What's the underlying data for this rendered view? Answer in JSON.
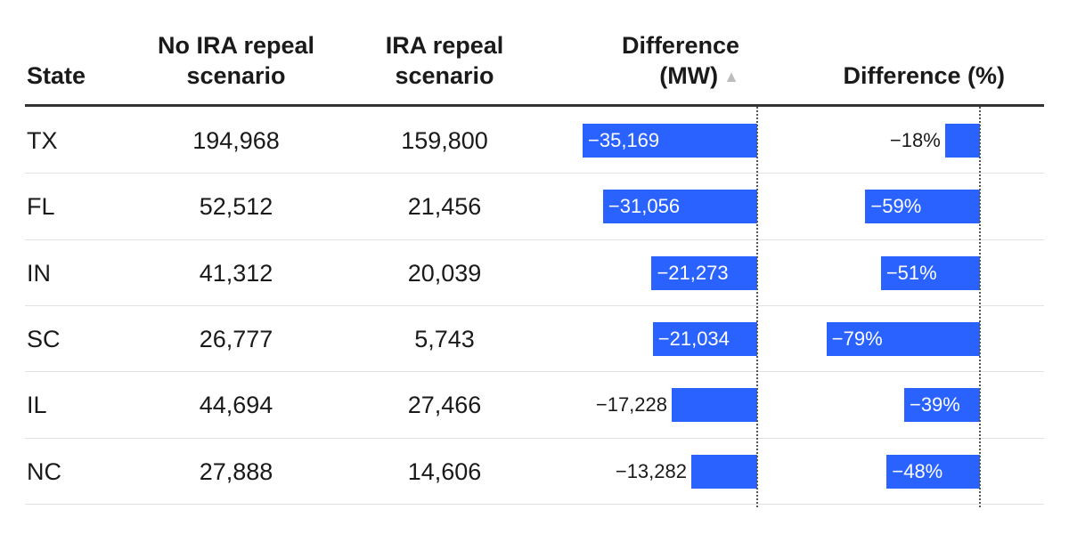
{
  "headers": {
    "state": "State",
    "no_repeal_line1": "No IRA repeal",
    "no_repeal_line2": "scenario",
    "repeal_line1": "IRA repeal",
    "repeal_line2": "scenario",
    "diff_mw_line1": "Difference",
    "diff_mw_line2": "(MW)",
    "sort_icon": "▲",
    "diff_pct": "Difference (%)"
  },
  "colors": {
    "bar": "#2962ff",
    "label_inside": "#ffffff",
    "label_outside": "#1a1a1a"
  },
  "chart_data": {
    "type": "table",
    "columns": [
      "State",
      "No IRA repeal scenario",
      "IRA repeal scenario",
      "Difference (MW)",
      "Difference (%)"
    ],
    "sorted_by": "Difference (MW)",
    "sort_direction": "ascending",
    "rows": [
      {
        "state": "TX",
        "no_repeal": 194968,
        "repeal": 159800,
        "diff_mw": -35169,
        "diff_pct": -18,
        "no_repeal_text": "194,968",
        "repeal_text": "159,800",
        "diff_mw_text": "−35,169",
        "diff_pct_text": "−18%"
      },
      {
        "state": "FL",
        "no_repeal": 52512,
        "repeal": 21456,
        "diff_mw": -31056,
        "diff_pct": -59,
        "no_repeal_text": "52,512",
        "repeal_text": "21,456",
        "diff_mw_text": "−31,056",
        "diff_pct_text": "−59%"
      },
      {
        "state": "IN",
        "no_repeal": 41312,
        "repeal": 20039,
        "diff_mw": -21273,
        "diff_pct": -51,
        "no_repeal_text": "41,312",
        "repeal_text": "20,039",
        "diff_mw_text": "−21,273",
        "diff_pct_text": "−51%"
      },
      {
        "state": "SC",
        "no_repeal": 26777,
        "repeal": 5743,
        "diff_mw": -21034,
        "diff_pct": -79,
        "no_repeal_text": "26,777",
        "repeal_text": "5,743",
        "diff_mw_text": "−21,034",
        "diff_pct_text": "−79%"
      },
      {
        "state": "IL",
        "no_repeal": 44694,
        "repeal": 27466,
        "diff_mw": -17228,
        "diff_pct": -39,
        "no_repeal_text": "44,694",
        "repeal_text": "27,466",
        "diff_mw_text": "−17,228",
        "diff_pct_text": "−39%"
      },
      {
        "state": "NC",
        "no_repeal": 27888,
        "repeal": 14606,
        "diff_mw": -13282,
        "diff_pct": -48,
        "no_repeal_text": "27,888",
        "repeal_text": "14,606",
        "diff_mw_text": "−13,282",
        "diff_pct_text": "−48%"
      }
    ],
    "diff_mw_range": [
      -35169,
      0
    ],
    "diff_pct_range": [
      -100,
      0
    ]
  }
}
